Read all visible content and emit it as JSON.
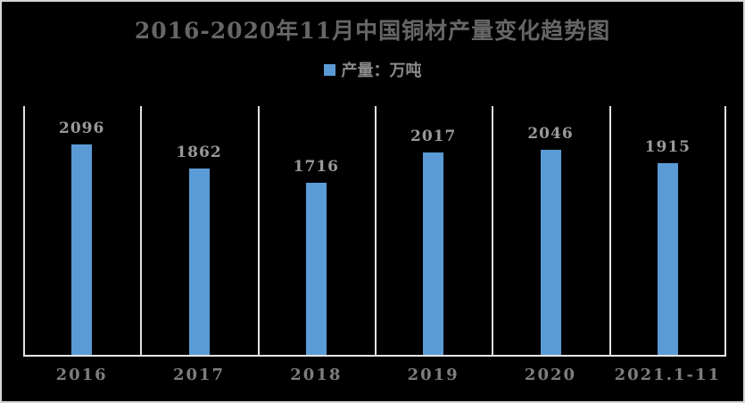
{
  "chart_data": {
    "type": "bar",
    "title": "2016-2020年11月中国铜材产量变化趋势图",
    "legend_label": "产量：万吨",
    "categories": [
      "2016",
      "2017",
      "2018",
      "2019",
      "2020",
      "2021.1-11"
    ],
    "values": [
      2096,
      1862,
      1716,
      2017,
      2046,
      1915
    ],
    "ylim": [
      0,
      2500
    ],
    "xlabel": "",
    "ylabel": "",
    "legend_position": "top-center",
    "grid": "vertical-separators-only",
    "value_labels_shown": true
  },
  "colors": {
    "background": "#000000",
    "frame_border": "#d6d6d6",
    "bar": "#5b9bd5",
    "gridline": "#e2e2e2",
    "axis_line": "#e6e6e6",
    "title_text": "#666666",
    "value_label_text": "#9a9a9a",
    "axis_label_text": "#7d7d7d",
    "legend_text": "#8a8a8a"
  }
}
